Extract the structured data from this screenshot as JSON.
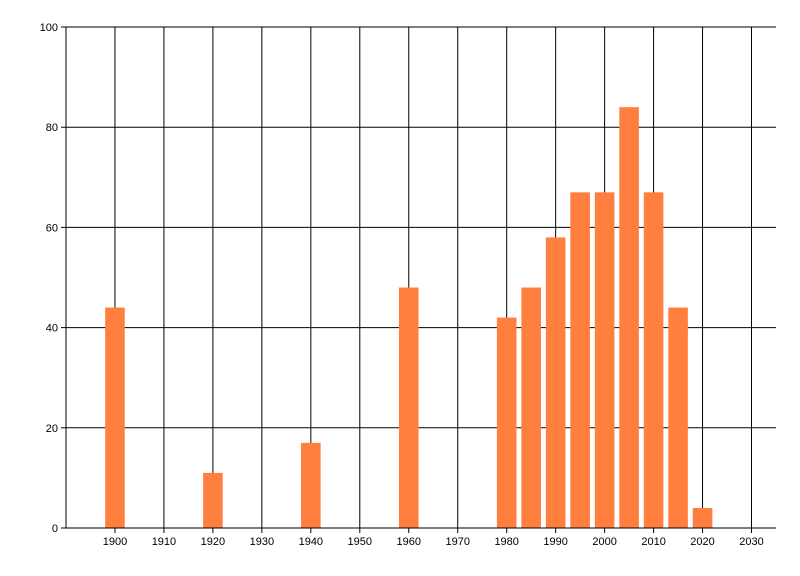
{
  "chart_data": {
    "type": "bar",
    "x": [
      1900,
      1920,
      1940,
      1960,
      1980,
      1985,
      1990,
      1995,
      2000,
      2005,
      2010,
      2015,
      2020
    ],
    "values": [
      44,
      11,
      17,
      48,
      42,
      48,
      58,
      67,
      67,
      84,
      67,
      44,
      4
    ],
    "xlim": [
      1890,
      2035
    ],
    "ylim": [
      0,
      100
    ],
    "x_ticks": [
      1900,
      1910,
      1920,
      1930,
      1940,
      1950,
      1960,
      1970,
      1980,
      1990,
      2000,
      2010,
      2020,
      2030
    ],
    "y_ticks": [
      0,
      20,
      40,
      60,
      80,
      100
    ],
    "title": "",
    "xlabel": "",
    "ylabel": "",
    "grid": true,
    "bar_color": "#FF7F3F"
  }
}
